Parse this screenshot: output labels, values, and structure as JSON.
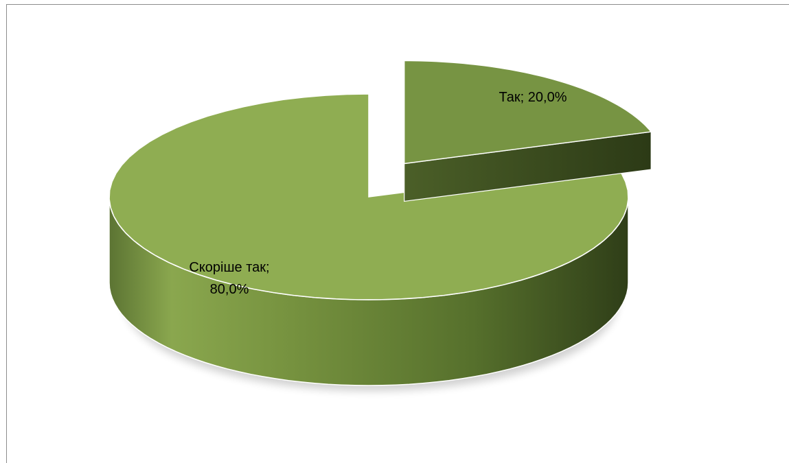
{
  "chart_data": {
    "type": "pie",
    "style": "3d-exploded",
    "title": "",
    "slices": [
      {
        "label": "Так",
        "value": 20.0,
        "display": "Так; 20,0%",
        "color": "#779443",
        "exploded": true
      },
      {
        "label": "Скоріше так",
        "value": 80.0,
        "display_lines": [
          "Скоріше так;",
          "80,0%"
        ],
        "color": "#8fad52",
        "exploded": false
      }
    ],
    "legend": "none",
    "data_labels": "inside"
  }
}
